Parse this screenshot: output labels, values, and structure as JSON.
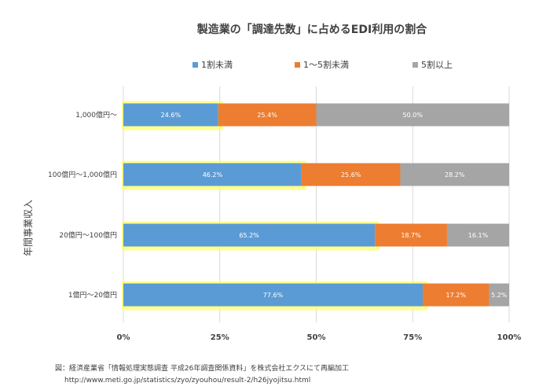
{
  "chart_data": {
    "type": "bar",
    "orientation": "horizontal",
    "stacked": true,
    "title": "製造業の「調達先数」に占めるEDI利用の割合",
    "ylabel": "年間事業収入",
    "xlabel": "",
    "categories": [
      "1,000億円～",
      "100億円～1,000億円",
      "20億円～100億円",
      "1億円～20億円"
    ],
    "series": [
      {
        "name": "1割未満",
        "values": [
          24.6,
          46.2,
          65.2,
          77.6
        ],
        "labels": [
          "24.6%",
          "46.2%",
          "65.2%",
          "77.6%"
        ],
        "color": "#5b9bd5"
      },
      {
        "name": "1～5割未満",
        "values": [
          25.4,
          25.6,
          18.7,
          17.2
        ],
        "labels": [
          "25.4%",
          "25.6%",
          "18.7%",
          "17.2%"
        ],
        "color": "#ed7d31"
      },
      {
        "name": "5割以上",
        "values": [
          50.0,
          28.2,
          16.1,
          5.2
        ],
        "labels": [
          "50.0%",
          "28.2%",
          "16.1%",
          "5.2%"
        ],
        "color": "#a5a5a5"
      }
    ],
    "xlim": [
      0,
      100
    ],
    "xticks": [
      "0%",
      "25%",
      "50%",
      "75%",
      "100%"
    ],
    "grid": true,
    "legend_position": "top",
    "highlight_series": "1割未満",
    "highlight_color": "#ffff66"
  },
  "source": {
    "line1": "図：経済産業省「情報処理実態調査 平成26年調査関係資料」を株式会社エクスにて再編加工",
    "line2": "http://www.meti.go.jp/statistics/zyo/zyouhou/result-2/h26jyojitsu.html"
  }
}
